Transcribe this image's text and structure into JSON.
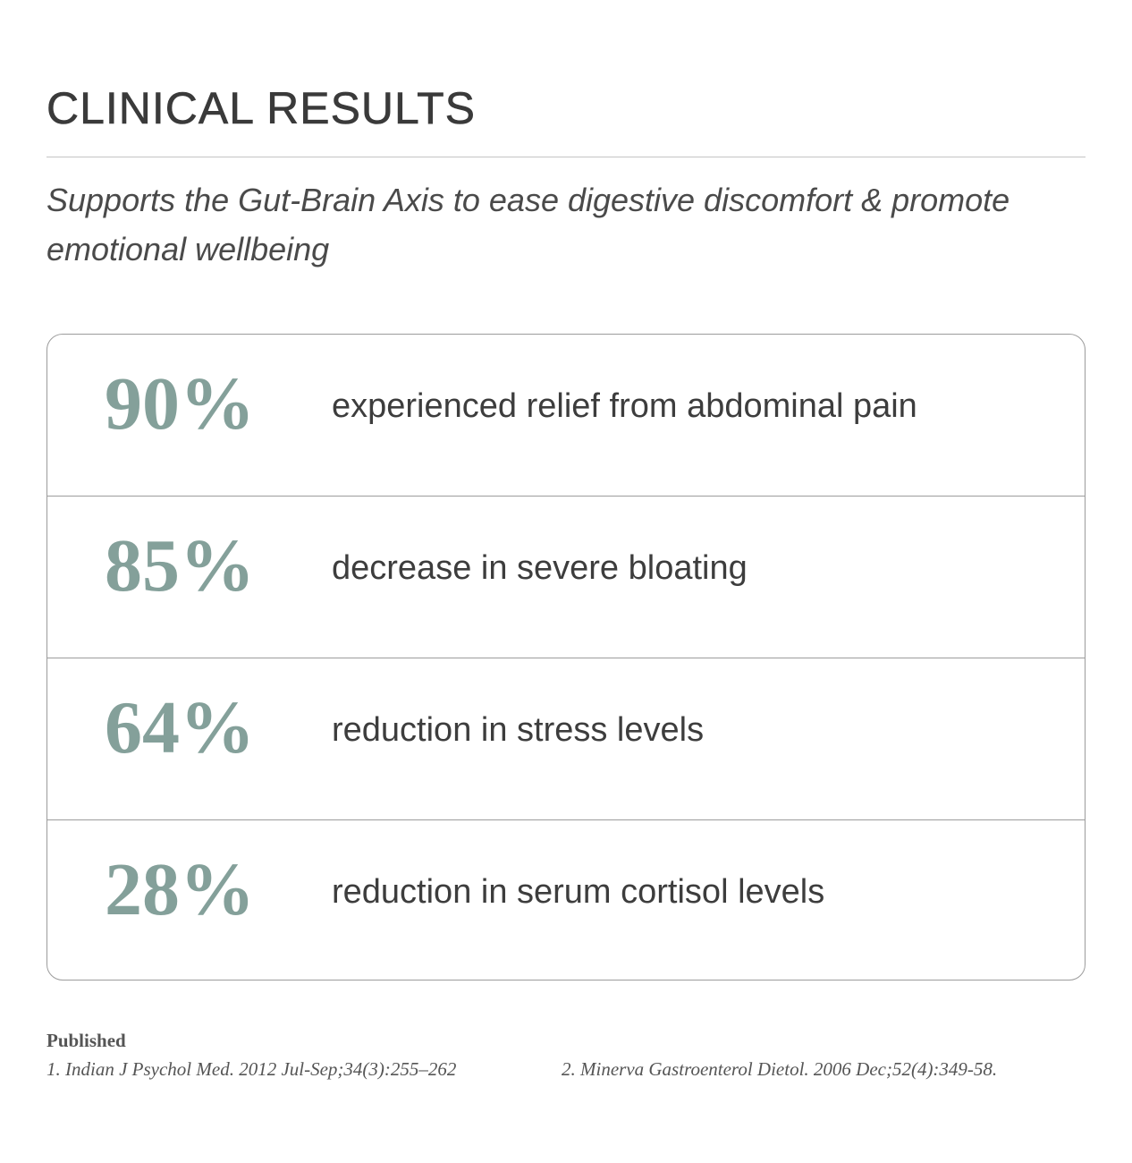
{
  "header": {
    "title": "CLINICAL RESULTS",
    "subtitle": "Supports the Gut-Brain Axis to ease digestive discomfort & promote emotional wellbeing"
  },
  "results": [
    {
      "stat": "90%",
      "text": "experienced relief from abdominal pain"
    },
    {
      "stat": "85%",
      "text": "decrease in severe bloating"
    },
    {
      "stat": "64%",
      "text": "reduction in stress levels"
    },
    {
      "stat": "28%",
      "text": "reduction in serum cortisol levels"
    }
  ],
  "footer": {
    "label": "Published",
    "references": [
      "1. Indian J Psychol Med. 2012 Jul-Sep;34(3):255–262",
      "2. Minerva Gastroenterol Dietol. 2006 Dec;52(4):349-58."
    ]
  }
}
